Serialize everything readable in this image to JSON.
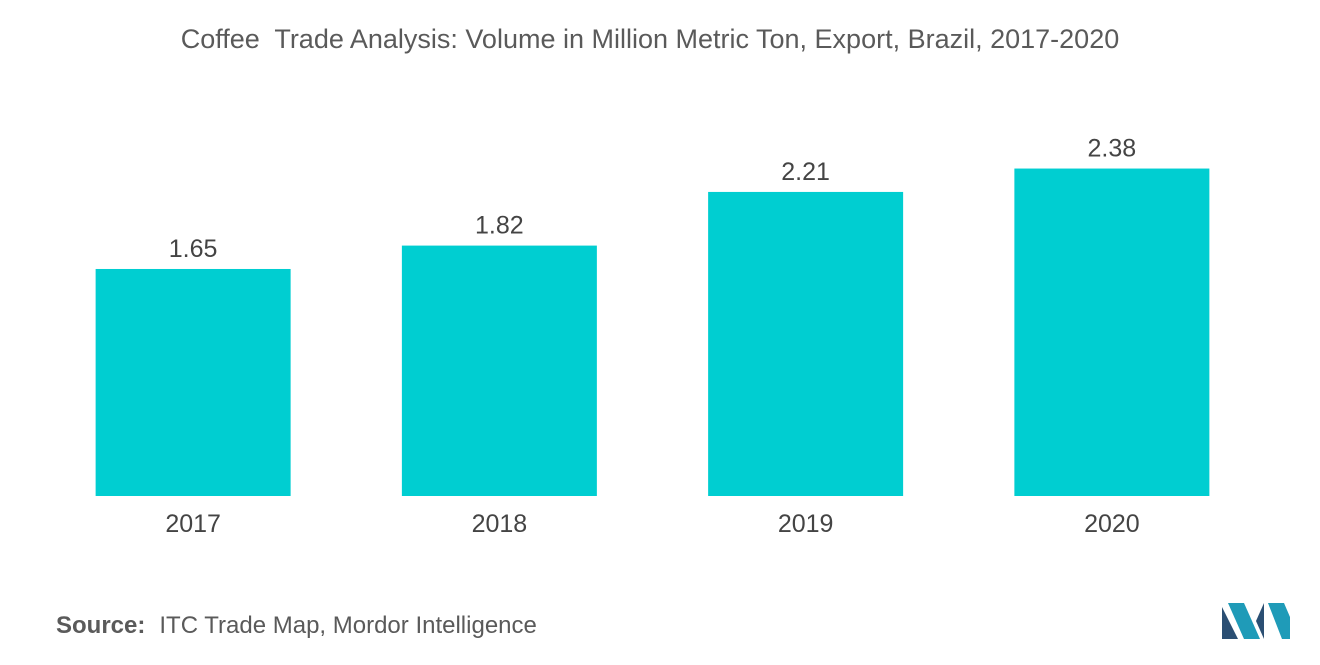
{
  "chart_data": {
    "type": "bar",
    "title": "Coffee  Trade Analysis: Volume in Million Metric Ton, Export, Brazil, 2017-2020",
    "categories": [
      "2017",
      "2018",
      "2019",
      "2020"
    ],
    "values": [
      1.65,
      1.82,
      2.21,
      2.38
    ],
    "value_labels": [
      "1.65",
      "1.82",
      "2.21",
      "2.38"
    ],
    "xlabel": "",
    "ylabel": "",
    "ylim": [
      0,
      2.9
    ],
    "grid": false,
    "bar_color": "#00CED1"
  },
  "source": {
    "label": "Source:",
    "text": "ITC Trade Map, Mordor Intelligence"
  },
  "logo": {
    "icon": "mordor-intelligence-logo-icon",
    "colors": [
      "#1f9bb8",
      "#2b4f73"
    ]
  }
}
